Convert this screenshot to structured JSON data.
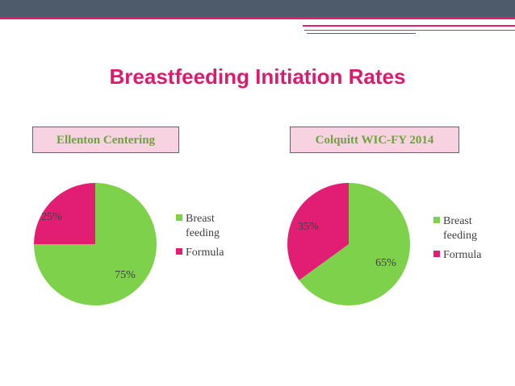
{
  "title": "Breastfeeding Initiation Rates",
  "colors": {
    "breast_feeding": "#7ed14a",
    "formula": "#e21e74",
    "title": "#d91c6e"
  },
  "chart_data": [
    {
      "type": "pie",
      "title": "Ellenton Centering",
      "categories": [
        "Breast feeding",
        "Formula"
      ],
      "legend": [
        [
          "Breast",
          "feeding"
        ],
        [
          "Formula"
        ]
      ],
      "values": [
        75,
        25
      ],
      "labels": [
        "75%",
        "25%"
      ],
      "legend_position": "right"
    },
    {
      "type": "pie",
      "title": "Colquitt WIC-FY 2014",
      "categories": [
        "Breast feeding",
        "Formula"
      ],
      "legend": [
        [
          "Breast",
          "feeding"
        ],
        [
          "Formula"
        ]
      ],
      "values": [
        65,
        35
      ],
      "labels": [
        "65%",
        "35%"
      ],
      "legend_position": "right"
    }
  ]
}
